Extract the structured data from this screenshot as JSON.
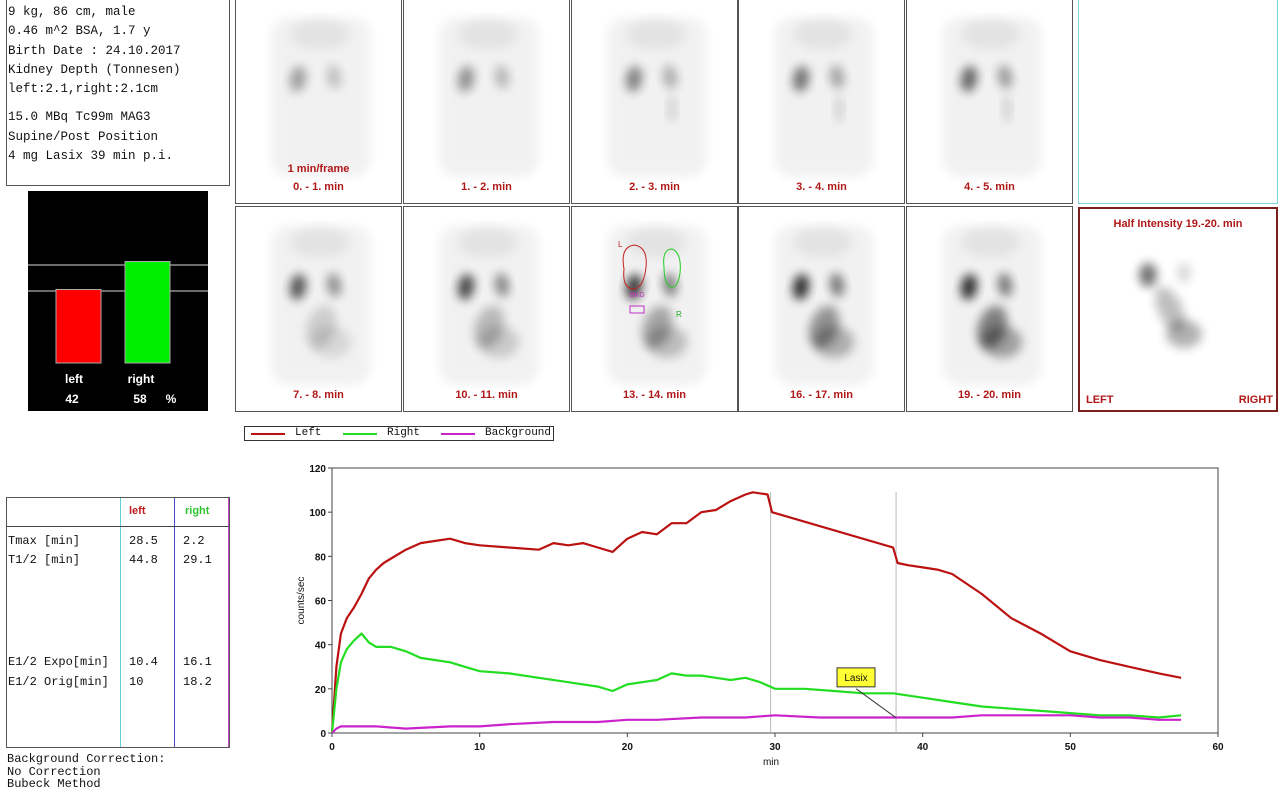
{
  "patient_info": {
    "lines": [
      "9 kg, 86 cm, male",
      "0.46 m^2 BSA, 1.7 y",
      "Birth Date : 24.10.2017",
      "Kidney Depth (Tonnesen)",
      "left:2.1,right:2.1cm"
    ],
    "lines2": [
      "15.0 MBq Tc99m MAG3",
      "Supine/Post Position",
      "4 mg Lasix 39 min p.i."
    ]
  },
  "split_function": {
    "left_label": "left",
    "right_label": "right",
    "left_value": "42",
    "right_value": "58",
    "unit": "%",
    "left_color": "#ff0000",
    "right_color": "#00ee00"
  },
  "frames": {
    "frame_time_note": "1 min/frame",
    "row1": [
      "0. - 1. min",
      "1. - 2. min",
      "2. - 3. min",
      "3. - 4. min",
      "4. - 5. min"
    ],
    "row2": [
      "7. - 8. min",
      "10. - 11. min",
      "13. - 14. min",
      "16. - 17. min",
      "19. - 20. min"
    ],
    "roi_labels": {
      "left": "L",
      "right": "R",
      "background": "BKG"
    },
    "half_intensity_title": "Half Intensity 19.-20. min",
    "half_left": "LEFT",
    "half_right": "RIGHT"
  },
  "results_table": {
    "head_left": "left",
    "head_right": "right",
    "rows": [
      {
        "label": "Tmax [min]",
        "left": "28.5",
        "right": "2.2"
      },
      {
        "label": "T1/2 [min]",
        "left": "44.8",
        "right": "29.1"
      },
      {
        "label": "E1/2 Expo[min]",
        "left": "10.4",
        "right": "16.1"
      },
      {
        "label": "E1/2 Orig[min]",
        "left": "10",
        "right": "18.2"
      }
    ]
  },
  "background_correction": {
    "line1": "Background Correction:",
    "line2": "No Correction",
    "line3": "Bubeck Method"
  },
  "chart_data": {
    "type": "line",
    "xlabel": "min",
    "ylabel": "counts/sec",
    "xlim": [
      0,
      60
    ],
    "ylim": [
      0,
      120
    ],
    "xticks": [
      0,
      10,
      20,
      30,
      40,
      50,
      60
    ],
    "yticks": [
      0,
      20,
      40,
      60,
      80,
      100,
      120
    ],
    "markers": [
      29.7,
      38.2
    ],
    "annotation": {
      "text": "Lasix",
      "x": 38.2,
      "y": 6
    },
    "legend_position": "top-left",
    "series": [
      {
        "name": "Left",
        "color": "#bb1111",
        "x": [
          0,
          0.3,
          0.6,
          1,
          1.5,
          2,
          2.5,
          3,
          3.5,
          4,
          5,
          6,
          7,
          8,
          9,
          10,
          12,
          14,
          15,
          16,
          17,
          18,
          19,
          20,
          21,
          22,
          23,
          24,
          25,
          26,
          27,
          28,
          28.5,
          29.5,
          29.8,
          38,
          38.3,
          39,
          40,
          41,
          42,
          44,
          46,
          48,
          50,
          52,
          54,
          56,
          57.5
        ],
        "y": [
          0,
          30,
          45,
          52,
          57,
          63,
          70,
          74,
          77,
          79,
          83,
          86,
          87,
          88,
          86,
          85,
          84,
          83,
          86,
          85,
          86,
          84,
          82,
          88,
          91,
          90,
          95,
          95,
          100,
          101,
          105,
          108,
          109,
          108,
          100,
          84,
          77,
          76,
          75,
          74,
          72,
          63,
          52,
          45,
          37,
          33,
          30,
          27,
          25
        ]
      },
      {
        "name": "Right",
        "color": "#22dd22",
        "x": [
          0,
          0.3,
          0.6,
          1,
          1.5,
          2,
          2.5,
          3,
          4,
          5,
          6,
          7,
          8,
          9,
          10,
          12,
          14,
          16,
          18,
          19,
          20,
          21,
          22,
          23,
          24,
          25,
          26,
          27,
          28,
          29,
          30,
          32,
          34,
          36,
          38,
          40,
          42,
          44,
          46,
          48,
          50,
          52,
          54,
          56,
          57.5
        ],
        "y": [
          0,
          20,
          32,
          38,
          42,
          45,
          41,
          39,
          39,
          37,
          34,
          33,
          32,
          30,
          28,
          27,
          25,
          23,
          21,
          19,
          22,
          23,
          24,
          27,
          26,
          26,
          25,
          24,
          25,
          23,
          20,
          20,
          19,
          18,
          18,
          16,
          14,
          12,
          11,
          10,
          9,
          8,
          8,
          7,
          8
        ]
      },
      {
        "name": "Background",
        "color": "#cc22cc",
        "x": [
          0,
          0.3,
          0.6,
          1,
          2,
          3,
          5,
          8,
          10,
          12,
          15,
          18,
          20,
          22,
          25,
          28,
          30,
          33,
          36,
          38,
          40,
          42,
          44,
          46,
          48,
          50,
          52,
          54,
          56,
          57.5
        ],
        "y": [
          0,
          2,
          3,
          3,
          3,
          3,
          2,
          3,
          3,
          4,
          5,
          5,
          6,
          6,
          7,
          7,
          8,
          7,
          7,
          7,
          7,
          7,
          8,
          8,
          8,
          8,
          7,
          7,
          6,
          6
        ]
      }
    ]
  }
}
